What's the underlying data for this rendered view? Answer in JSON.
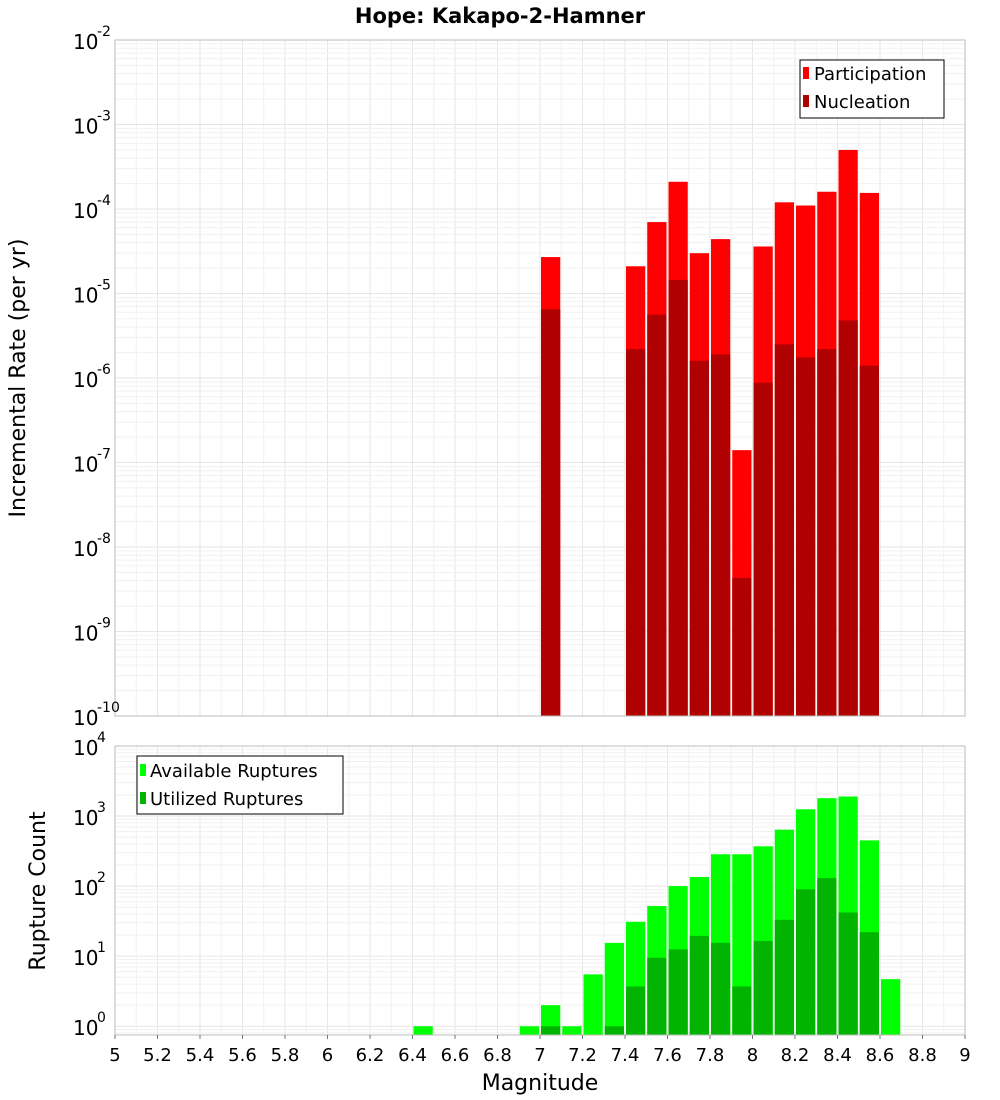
{
  "chart_data": [
    {
      "type": "bar",
      "title": "Hope: Kakapo-2-Hamner",
      "xlabel": "",
      "ylabel": "Incremental Rate (per yr)",
      "yscale": "log",
      "ylim": [
        1e-10,
        0.01
      ],
      "xlim": [
        5,
        9
      ],
      "bin_width": 0.1,
      "legend_position": "top-right",
      "grid": true,
      "y_ticks": [
        {
          "base": "10",
          "exp": "-10"
        },
        {
          "base": "10",
          "exp": "-9"
        },
        {
          "base": "10",
          "exp": "-8"
        },
        {
          "base": "10",
          "exp": "-7"
        },
        {
          "base": "10",
          "exp": "-6"
        },
        {
          "base": "10",
          "exp": "-5"
        },
        {
          "base": "10",
          "exp": "-4"
        },
        {
          "base": "10",
          "exp": "-3"
        },
        {
          "base": "10",
          "exp": "-2"
        }
      ],
      "x": [
        7.05,
        7.45,
        7.55,
        7.65,
        7.75,
        7.85,
        7.95,
        8.05,
        8.15,
        8.25,
        8.35,
        8.45,
        8.55
      ],
      "series": [
        {
          "name": "Participation",
          "color": "#ff0000",
          "values": [
            2.7e-05,
            2.1e-05,
            7e-05,
            0.00021,
            3e-05,
            4.4e-05,
            1.4e-07,
            3.6e-05,
            0.00012,
            0.00011,
            0.00016,
            0.0005,
            0.000155
          ]
        },
        {
          "name": "Nucleation",
          "color": "#b00000",
          "values": [
            6.5e-06,
            2.2e-06,
            5.6e-06,
            1.45e-05,
            1.6e-06,
            1.9e-06,
            4.3e-09,
            8.8e-07,
            2.5e-06,
            1.75e-06,
            2.2e-06,
            4.8e-06,
            1.4e-06
          ]
        }
      ]
    },
    {
      "type": "bar",
      "title": "",
      "xlabel": "Magnitude",
      "ylabel": "Rupture Count",
      "yscale": "log",
      "ylim": [
        0.75,
        10000
      ],
      "xlim": [
        5,
        9
      ],
      "bin_width": 0.1,
      "legend_position": "top-left",
      "grid": true,
      "x_ticks": [
        "5",
        "5.2",
        "5.4",
        "5.6",
        "5.8",
        "6",
        "6.2",
        "6.4",
        "6.6",
        "6.8",
        "7",
        "7.2",
        "7.4",
        "7.6",
        "7.8",
        "8",
        "8.2",
        "8.4",
        "8.6",
        "8.8",
        "9"
      ],
      "y_ticks": [
        {
          "base": "10",
          "exp": "0"
        },
        {
          "base": "10",
          "exp": "1"
        },
        {
          "base": "10",
          "exp": "2"
        },
        {
          "base": "10",
          "exp": "3"
        },
        {
          "base": "10",
          "exp": "4"
        }
      ],
      "x": [
        6.45,
        6.95,
        7.05,
        7.15,
        7.25,
        7.35,
        7.45,
        7.55,
        7.65,
        7.75,
        7.85,
        7.95,
        8.05,
        8.15,
        8.25,
        8.35,
        8.45,
        8.55,
        8.65
      ],
      "series": [
        {
          "name": "Available Ruptures",
          "color": "#00ff00",
          "values": [
            1,
            1,
            2,
            1,
            5.5,
            15.5,
            31,
            52,
            100,
            135,
            285,
            285,
            370,
            640,
            1250,
            1800,
            1900,
            450,
            4.7
          ]
        },
        {
          "name": "Utilized Ruptures",
          "color": "#00b400",
          "values": [
            0,
            0,
            1,
            0,
            0,
            1,
            3.7,
            9.5,
            12.5,
            19.5,
            15.5,
            3.7,
            16.5,
            33,
            90,
            130,
            42,
            22,
            0
          ]
        }
      ]
    }
  ]
}
